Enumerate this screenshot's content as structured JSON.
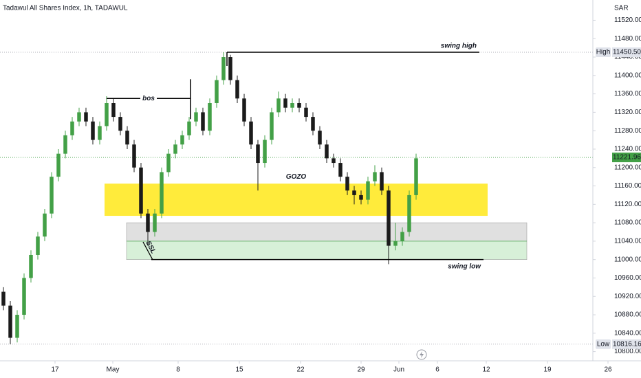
{
  "chart_data": {
    "type": "candlestick",
    "title": "Tadawul All Shares Index, 1h, TADAWUL",
    "currency": "SAR",
    "up_color": "#43a047",
    "down_color": "#1b1b1b",
    "xlim": [
      -0.5,
      92.7
    ],
    "ylim": [
      10780,
      11564
    ],
    "xticks": [
      {
        "value": 7.5,
        "label": "17"
      },
      {
        "value": 15.9,
        "label": "May"
      },
      {
        "value": 25.4,
        "label": "8"
      },
      {
        "value": 34.3,
        "label": "15"
      },
      {
        "value": 43.2,
        "label": "22"
      },
      {
        "value": 52,
        "label": "29"
      },
      {
        "value": 57.5,
        "label": "Jun"
      },
      {
        "value": 63.1,
        "label": "6"
      },
      {
        "value": 70.2,
        "label": "12"
      },
      {
        "value": 79.1,
        "label": "19"
      },
      {
        "value": 87.9,
        "label": "26"
      }
    ],
    "yticks": [
      {
        "value": 11520,
        "label": "11520.000"
      },
      {
        "value": 11480,
        "label": "11480.000"
      },
      {
        "value": 11440,
        "label": "11440.000"
      },
      {
        "value": 11400,
        "label": "11400.000"
      },
      {
        "value": 11360,
        "label": "11360.000"
      },
      {
        "value": 11320,
        "label": "11320.000"
      },
      {
        "value": 11280,
        "label": "11280.000"
      },
      {
        "value": 11240,
        "label": "11240.000"
      },
      {
        "value": 11200,
        "label": "11200.000"
      },
      {
        "value": 11160,
        "label": "11160.000"
      },
      {
        "value": 11120,
        "label": "11120.000"
      },
      {
        "value": 11080,
        "label": "11080.000"
      },
      {
        "value": 11040,
        "label": "11040.000"
      },
      {
        "value": 11000,
        "label": "11000.000"
      },
      {
        "value": 10960,
        "label": "10960.000"
      },
      {
        "value": 10920,
        "label": "10920.000"
      },
      {
        "value": 10880,
        "label": "10880.000"
      },
      {
        "value": 10840,
        "label": "10840.000"
      },
      {
        "value": 10800,
        "label": "10800.000"
      }
    ],
    "open": [
      10930,
      10900,
      10830,
      10880,
      10960,
      11010,
      11050,
      11100,
      11180,
      11230,
      11270,
      11300,
      11320,
      11300,
      11260,
      11290,
      11340,
      11310,
      11280,
      11250,
      11200,
      11100,
      11060,
      11100,
      11190,
      11230,
      11250,
      11270,
      11300,
      11320,
      11280,
      11340,
      11390,
      11440,
      11390,
      11350,
      11300,
      11250,
      11210,
      11260,
      11320,
      11350,
      11330,
      11340,
      11330,
      11310,
      11280,
      11250,
      11220,
      11210,
      11180,
      11150,
      11140,
      11130,
      11170,
      11190,
      11150,
      11030,
      11040,
      11060,
      11140
    ],
    "high": [
      10940,
      10910,
      10890,
      10970,
      11020,
      11060,
      11110,
      11190,
      11240,
      11280,
      11310,
      11330,
      11330,
      11310,
      11300,
      11355,
      11350,
      11320,
      11290,
      11260,
      11210,
      11110,
      11110,
      11200,
      11240,
      11260,
      11280,
      11310,
      11330,
      11330,
      11350,
      11400,
      11450.5,
      11445,
      11400,
      11360,
      11310,
      11260,
      11270,
      11330,
      11365,
      11360,
      11350,
      11350,
      11340,
      11320,
      11290,
      11260,
      11230,
      11220,
      11190,
      11160,
      11150,
      11180,
      11205,
      11200,
      11160,
      11080,
      11070,
      11150,
      11230
    ],
    "low": [
      10890,
      10816.16,
      10820,
      10870,
      10950,
      11000,
      11040,
      11090,
      11170,
      11220,
      11260,
      11290,
      11290,
      11250,
      11250,
      11280,
      11300,
      11270,
      11240,
      11190,
      11090,
      11030,
      11050,
      11090,
      11180,
      11220,
      11240,
      11260,
      11290,
      11270,
      11270,
      11330,
      11380,
      11380,
      11340,
      11290,
      11240,
      11150,
      11200,
      11250,
      11310,
      11320,
      11320,
      11320,
      11300,
      11270,
      11240,
      11210,
      11200,
      11170,
      11140,
      11120,
      11120,
      11120,
      11160,
      11140,
      10990,
      11020,
      11030,
      11050,
      11130
    ],
    "close": [
      10900,
      10830,
      10880,
      10960,
      11010,
      11050,
      11100,
      11180,
      11230,
      11270,
      11300,
      11320,
      11300,
      11260,
      11290,
      11340,
      11310,
      11280,
      11250,
      11200,
      11100,
      11060,
      11100,
      11190,
      11230,
      11250,
      11270,
      11300,
      11320,
      11280,
      11340,
      11390,
      11440,
      11390,
      11350,
      11300,
      11250,
      11210,
      11260,
      11320,
      11350,
      11330,
      11340,
      11330,
      11310,
      11280,
      11250,
      11220,
      11210,
      11180,
      11150,
      11140,
      11130,
      11170,
      11190,
      11150,
      11030,
      11040,
      11060,
      11140,
      11220
    ],
    "price_labels": [
      {
        "name": "High",
        "value": 11450.5,
        "label": "11450.500"
      },
      {
        "value": 11221.96,
        "label": "11221.960"
      },
      {
        "name": "Low",
        "value": 10816.16,
        "label": "10816.160"
      }
    ],
    "zones": [
      {
        "label": "GOZO",
        "color": "#ffeb3b",
        "x": [
          14.7,
          70.4
        ],
        "y": [
          11165,
          11095
        ]
      },
      {
        "color": "#e0e0e0",
        "x": [
          17.9,
          76.1
        ],
        "y": [
          11080,
          11040
        ]
      },
      {
        "color": "#d7f0d8",
        "x": [
          17.9,
          76.1
        ],
        "y": [
          11040,
          11000
        ]
      }
    ],
    "levels": [
      {
        "label": "swing high",
        "value": 11450.5,
        "x": [
          32.5,
          69.2
        ]
      },
      {
        "label": "bos",
        "value": 11350,
        "x": [
          15,
          27.2
        ]
      },
      {
        "label": "swing low",
        "value": 11000,
        "x": [
          21.5,
          69.8
        ]
      }
    ],
    "note": "SSL"
  }
}
